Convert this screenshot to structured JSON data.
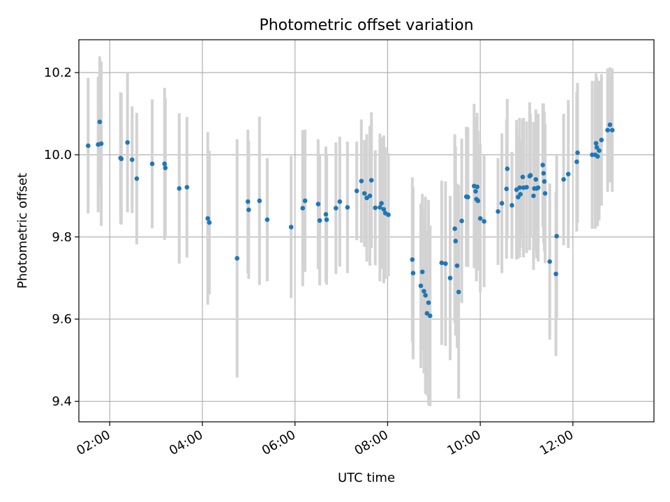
{
  "chart_data": {
    "type": "scatter",
    "title": "Photometric offset variation",
    "xlabel": "UTC time",
    "ylabel": "Photometric offset",
    "x_axis": "time",
    "x_ticks": [
      "02:00",
      "04:00",
      "06:00",
      "08:00",
      "10:00",
      "12:00"
    ],
    "y_ticks": [
      9.4,
      9.6,
      9.8,
      10.0,
      10.2
    ],
    "xlim": [
      "01:20",
      "13:45"
    ],
    "ylim": [
      9.35,
      10.28
    ],
    "grid": true,
    "marker_color": "#1f77b4",
    "errorbar_color": "#d3d3d3",
    "points": [
      {
        "t": "01:32",
        "y": 10.022,
        "err": 0.165
      },
      {
        "t": "01:45",
        "y": 10.025,
        "err": 0.165
      },
      {
        "t": "01:47",
        "y": 10.08,
        "err": 0.16
      },
      {
        "t": "01:49",
        "y": 10.027,
        "err": 0.2
      },
      {
        "t": "02:14",
        "y": 9.992,
        "err": 0.16
      },
      {
        "t": "02:15",
        "y": 9.99,
        "err": 0.16
      },
      {
        "t": "02:23",
        "y": 10.03,
        "err": 0.17
      },
      {
        "t": "02:29",
        "y": 9.988,
        "err": 0.13
      },
      {
        "t": "02:35",
        "y": 9.942,
        "err": 0.16
      },
      {
        "t": "02:55",
        "y": 9.978,
        "err": 0.157
      },
      {
        "t": "03:11",
        "y": 9.978,
        "err": 0.185
      },
      {
        "t": "03:12",
        "y": 9.968,
        "err": 0.17
      },
      {
        "t": "03:30",
        "y": 9.918,
        "err": 0.183
      },
      {
        "t": "03:40",
        "y": 9.921,
        "err": 0.171
      },
      {
        "t": "04:07",
        "y": 9.845,
        "err": 0.21
      },
      {
        "t": "04:09",
        "y": 9.835,
        "err": 0.175
      },
      {
        "t": "04:45",
        "y": 9.748,
        "err": 0.29
      },
      {
        "t": "04:59",
        "y": 9.886,
        "err": 0.175
      },
      {
        "t": "05:00",
        "y": 9.866,
        "err": 0.168
      },
      {
        "t": "05:14",
        "y": 9.888,
        "err": 0.205
      },
      {
        "t": "05:24",
        "y": 9.842,
        "err": 0.15
      },
      {
        "t": "05:55",
        "y": 9.824,
        "err": 0.173
      },
      {
        "t": "06:10",
        "y": 9.87,
        "err": 0.19
      },
      {
        "t": "06:13",
        "y": 9.888,
        "err": 0.173
      },
      {
        "t": "06:30",
        "y": 9.88,
        "err": 0.158
      },
      {
        "t": "06:32",
        "y": 9.84,
        "err": 0.158
      },
      {
        "t": "06:40",
        "y": 9.855,
        "err": 0.165
      },
      {
        "t": "06:41",
        "y": 9.842,
        "err": 0.158
      },
      {
        "t": "06:53",
        "y": 9.87,
        "err": 0.16
      },
      {
        "t": "06:58",
        "y": 9.886,
        "err": 0.158
      },
      {
        "t": "07:08",
        "y": 9.872,
        "err": 0.16
      },
      {
        "t": "07:20",
        "y": 9.912,
        "err": 0.12
      },
      {
        "t": "07:26",
        "y": 9.936,
        "err": 0.15
      },
      {
        "t": "07:30",
        "y": 9.906,
        "err": 0.13
      },
      {
        "t": "07:33",
        "y": 9.895,
        "err": 0.155
      },
      {
        "t": "07:37",
        "y": 9.9,
        "err": 0.17
      },
      {
        "t": "07:39",
        "y": 9.938,
        "err": 0.165
      },
      {
        "t": "07:44",
        "y": 9.871,
        "err": 0.14
      },
      {
        "t": "07:50",
        "y": 9.872,
        "err": 0.18
      },
      {
        "t": "07:52",
        "y": 9.882,
        "err": 0.16
      },
      {
        "t": "07:55",
        "y": 9.867,
        "err": 0.18
      },
      {
        "t": "07:57",
        "y": 9.858,
        "err": 0.16
      },
      {
        "t": "08:01",
        "y": 9.854,
        "err": 0.15
      },
      {
        "t": "08:32",
        "y": 9.745,
        "err": 0.2
      },
      {
        "t": "08:33",
        "y": 9.712,
        "err": 0.21
      },
      {
        "t": "08:43",
        "y": 9.681,
        "err": 0.2
      },
      {
        "t": "08:45",
        "y": 9.715,
        "err": 0.19
      },
      {
        "t": "08:47",
        "y": 9.668,
        "err": 0.2
      },
      {
        "t": "08:49",
        "y": 9.658,
        "err": 0.24
      },
      {
        "t": "08:51",
        "y": 9.614,
        "err": 0.2
      },
      {
        "t": "08:53",
        "y": 9.64,
        "err": 0.25
      },
      {
        "t": "08:55",
        "y": 9.608,
        "err": 0.22
      },
      {
        "t": "09:10",
        "y": 9.737,
        "err": 0.2
      },
      {
        "t": "09:15",
        "y": 9.735,
        "err": 0.2
      },
      {
        "t": "09:21",
        "y": 9.7,
        "err": 0.2
      },
      {
        "t": "09:27",
        "y": 9.82,
        "err": 0.23
      },
      {
        "t": "09:28",
        "y": 9.79,
        "err": 0.23
      },
      {
        "t": "09:30",
        "y": 9.73,
        "err": 0.2
      },
      {
        "t": "09:32",
        "y": 9.666,
        "err": 0.26
      },
      {
        "t": "09:36",
        "y": 9.839,
        "err": 0.2
      },
      {
        "t": "09:42",
        "y": 9.898,
        "err": 0.17
      },
      {
        "t": "09:44",
        "y": 9.897,
        "err": 0.17
      },
      {
        "t": "09:52",
        "y": 9.924,
        "err": 0.2
      },
      {
        "t": "09:54",
        "y": 9.911,
        "err": 0.17
      },
      {
        "t": "09:55",
        "y": 9.892,
        "err": 0.2
      },
      {
        "t": "09:56",
        "y": 9.922,
        "err": 0.18
      },
      {
        "t": "09:57",
        "y": 9.888,
        "err": 0.17
      },
      {
        "t": "10:00",
        "y": 9.845,
        "err": 0.18
      },
      {
        "t": "10:05",
        "y": 9.838,
        "err": 0.16
      },
      {
        "t": "10:23",
        "y": 9.862,
        "err": 0.13
      },
      {
        "t": "10:28",
        "y": 9.882,
        "err": 0.17
      },
      {
        "t": "10:34",
        "y": 9.917,
        "err": 0.17
      },
      {
        "t": "10:35",
        "y": 9.966,
        "err": 0.17
      },
      {
        "t": "10:41",
        "y": 9.877,
        "err": 0.13
      },
      {
        "t": "10:47",
        "y": 9.915,
        "err": 0.17
      },
      {
        "t": "10:49",
        "y": 9.897,
        "err": 0.15
      },
      {
        "t": "10:51",
        "y": 9.92,
        "err": 0.17
      },
      {
        "t": "10:52",
        "y": 9.904,
        "err": 0.13
      },
      {
        "t": "10:55",
        "y": 9.946,
        "err": 0.14
      },
      {
        "t": "10:56",
        "y": 9.92,
        "err": 0.17
      },
      {
        "t": "11:00",
        "y": 9.921,
        "err": 0.16
      },
      {
        "t": "11:04",
        "y": 9.948,
        "err": 0.18
      },
      {
        "t": "11:05",
        "y": 9.95,
        "err": 0.15
      },
      {
        "t": "11:09",
        "y": 9.9,
        "err": 0.18
      },
      {
        "t": "11:10",
        "y": 9.918,
        "err": 0.15
      },
      {
        "t": "11:12",
        "y": 9.94,
        "err": 0.17
      },
      {
        "t": "11:13",
        "y": 9.918,
        "err": 0.17
      },
      {
        "t": "11:15",
        "y": 9.92,
        "err": 0.18
      },
      {
        "t": "11:21",
        "y": 9.975,
        "err": 0.15
      },
      {
        "t": "11:22",
        "y": 9.955,
        "err": 0.17
      },
      {
        "t": "11:23",
        "y": 9.935,
        "err": 0.17
      },
      {
        "t": "11:24",
        "y": 9.906,
        "err": 0.17
      },
      {
        "t": "11:30",
        "y": 9.74,
        "err": 0.19
      },
      {
        "t": "11:38",
        "y": 9.71,
        "err": 0.2
      },
      {
        "t": "11:39",
        "y": 9.802,
        "err": 0.2
      },
      {
        "t": "11:48",
        "y": 9.94,
        "err": 0.16
      },
      {
        "t": "11:54",
        "y": 9.953,
        "err": 0.18
      },
      {
        "t": "12:05",
        "y": 9.983,
        "err": 0.17
      },
      {
        "t": "12:06",
        "y": 10.005,
        "err": 0.17
      },
      {
        "t": "12:25",
        "y": 10.0,
        "err": 0.18
      },
      {
        "t": "12:29",
        "y": 10.0,
        "err": 0.18
      },
      {
        "t": "12:30",
        "y": 10.028,
        "err": 0.17
      },
      {
        "t": "12:31",
        "y": 10.018,
        "err": 0.17
      },
      {
        "t": "12:32",
        "y": 9.996,
        "err": 0.17
      },
      {
        "t": "12:34",
        "y": 10.01,
        "err": 0.17
      },
      {
        "t": "12:37",
        "y": 10.036,
        "err": 0.16
      },
      {
        "t": "12:45",
        "y": 10.06,
        "err": 0.15
      },
      {
        "t": "12:48",
        "y": 10.073,
        "err": 0.14
      },
      {
        "t": "12:51",
        "y": 10.06,
        "err": 0.15
      }
    ]
  }
}
